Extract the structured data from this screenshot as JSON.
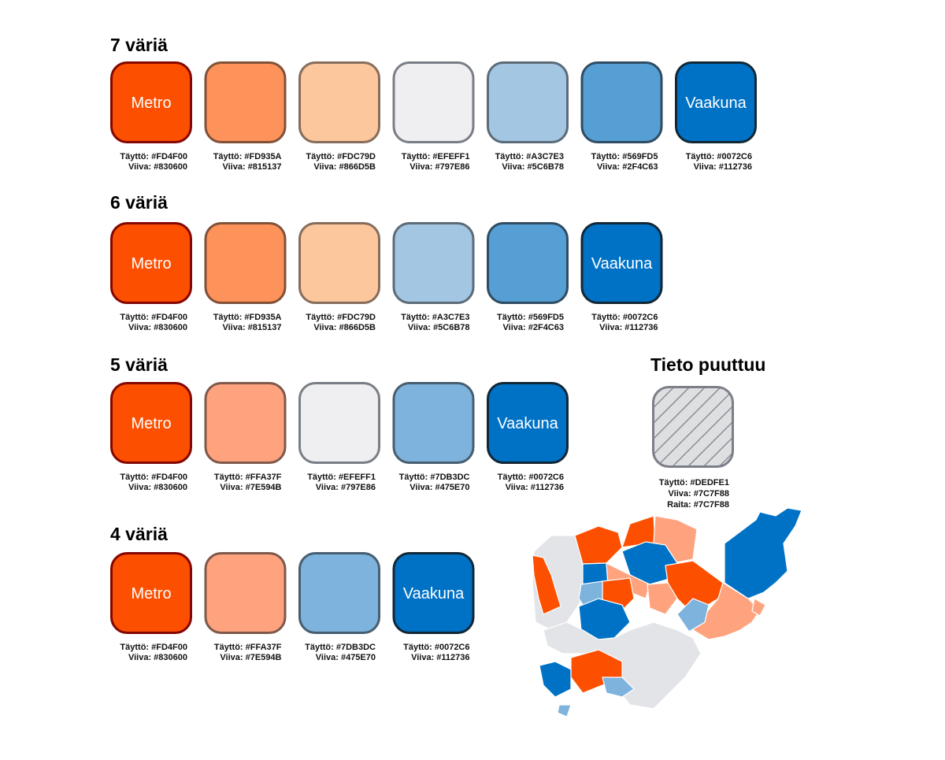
{
  "groups": [
    {
      "title": "7 väriä",
      "swatches": [
        {
          "label": "Metro",
          "lines": [
            "Täyttö: #FD4F00",
            "Viiva:  #830600"
          ]
        },
        {
          "lines": [
            "Täyttö: #FD935A",
            "Viiva: #815137"
          ]
        },
        {
          "lines": [
            "Täyttö: #FDC79D",
            "Viiva: #866D5B"
          ]
        },
        {
          "lines": [
            "Täyttö: #EFEFF1",
            "Viiva: #797E86"
          ]
        },
        {
          "lines": [
            "Täyttö: #A3C7E3",
            "Viiva: #5C6B78"
          ]
        },
        {
          "lines": [
            "Täyttö: #569FD5",
            "Viiva: #2F4C63"
          ]
        },
        {
          "label": "Vaakuna",
          "lines": [
            "Täyttö: #0072C6",
            "Viiva: #112736"
          ]
        }
      ]
    },
    {
      "title": "6 väriä",
      "swatches": [
        {
          "label": "Metro",
          "lines": [
            "Täyttö: #FD4F00",
            "Viiva: #830600"
          ]
        },
        {
          "lines": [
            "Täyttö: #FD935A",
            "Viiva: #815137"
          ]
        },
        {
          "lines": [
            "Täyttö: #FDC79D",
            "Viiva: #866D5B"
          ]
        },
        {
          "lines": [
            "Täyttö: #A3C7E3",
            "Viiva: #5C6B78"
          ]
        },
        {
          "lines": [
            "Täyttö: #569FD5",
            "Viiva: #2F4C63"
          ]
        },
        {
          "label": "Vaakuna",
          "lines": [
            "Täyttö: #0072C6",
            "Viiva: #112736"
          ]
        }
      ]
    },
    {
      "title": "5 väriä",
      "swatches": [
        {
          "label": "Metro",
          "lines": [
            "Täyttö: #FD4F00",
            "Viiva:  #830600"
          ]
        },
        {
          "lines": [
            "Täyttö: #FFA37F",
            "Viiva: #7E594B"
          ]
        },
        {
          "lines": [
            "Täyttö: #EFEFF1",
            "Viiva: #797E86"
          ]
        },
        {
          "lines": [
            "Täyttö: #7DB3DC",
            "Viiva: #475E70"
          ]
        },
        {
          "label": "Vaakuna",
          "lines": [
            "Täyttö: #0072C6",
            "Viiva: #112736"
          ]
        }
      ]
    },
    {
      "title": "4 väriä",
      "swatches": [
        {
          "label": "Metro",
          "lines": [
            "Täyttö: #FD4F00",
            "Viiva:  #830600"
          ]
        },
        {
          "lines": [
            "Täyttö: #FFA37F",
            "Viiva: #7E594B"
          ]
        },
        {
          "lines": [
            "Täyttö: #7DB3DC",
            "Viiva: #475E70"
          ]
        },
        {
          "label": "Vaakuna",
          "lines": [
            "Täyttö: #0072C6",
            "Viiva: #112736"
          ]
        }
      ]
    }
  ],
  "missing": {
    "title": "Tieto puuttuu",
    "lines": [
      "Täyttö: #DEDFE1",
      "Viiva: #7C7F88",
      "Raita: #7C7F88"
    ]
  }
}
